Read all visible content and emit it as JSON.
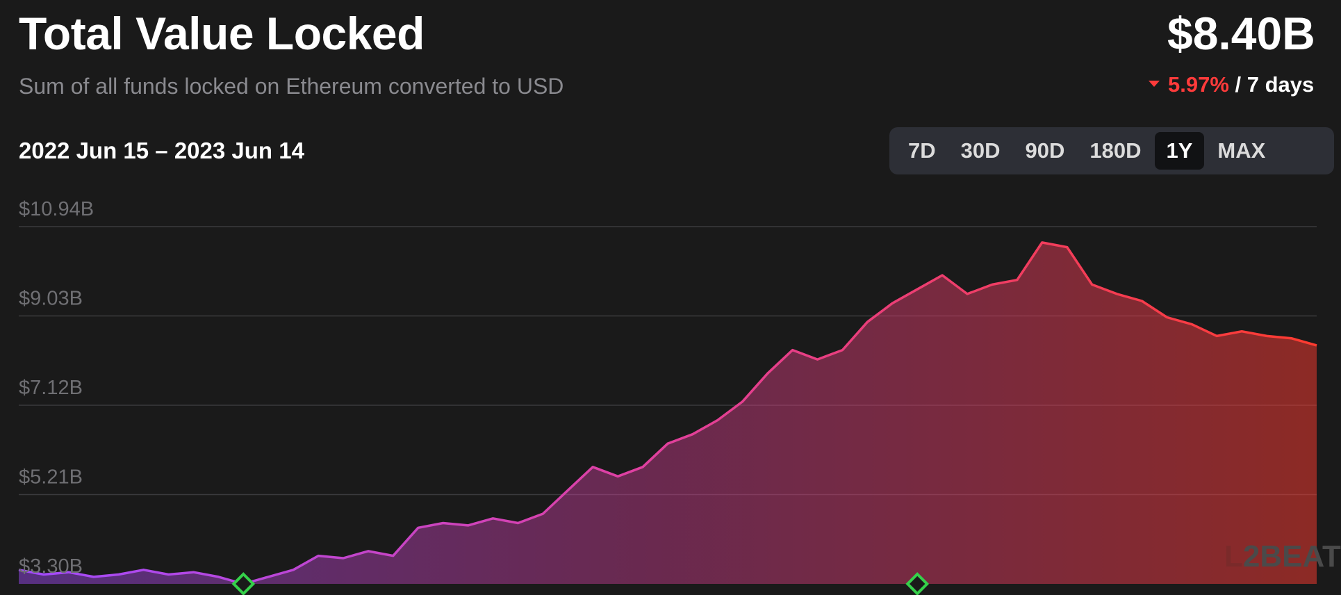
{
  "header": {
    "title": "Total Value Locked",
    "subtitle": "Sum of all funds locked on Ethereum converted to USD",
    "value": "$8.40B",
    "change_pct": "5.97%",
    "change_period": "/ 7 days"
  },
  "date_range": "2022 Jun 15 – 2023 Jun 14",
  "tabs": [
    {
      "label": "7D",
      "active": false
    },
    {
      "label": "30D",
      "active": false
    },
    {
      "label": "90D",
      "active": false
    },
    {
      "label": "180D",
      "active": false
    },
    {
      "label": "1Y",
      "active": true
    },
    {
      "label": "MAX",
      "active": false
    }
  ],
  "watermark": "L2BEAT",
  "colors": {
    "line_start": "#a24bff",
    "line_mid": "#e040a0",
    "line_end": "#ff3b2f",
    "milestone": "#35d14a",
    "negative": "#ff3b3b"
  },
  "chart_data": {
    "type": "area",
    "title": "Total Value Locked",
    "xlabel": "",
    "ylabel": "",
    "x_range": [
      "2022-06-15",
      "2023-06-14"
    ],
    "ylim": [
      3.3,
      10.94
    ],
    "y_ticks": [
      "$10.94B",
      "$9.03B",
      "$7.12B",
      "$5.21B",
      "$3.30B"
    ],
    "y_tick_values": [
      10.94,
      9.03,
      7.12,
      5.21,
      3.3
    ],
    "grid": true,
    "series": [
      {
        "values": [
          3.6,
          3.5,
          3.55,
          3.45,
          3.5,
          3.6,
          3.5,
          3.55,
          3.45,
          3.3,
          3.45,
          3.6,
          3.9,
          3.85,
          4.0,
          3.9,
          4.5,
          4.6,
          4.55,
          4.7,
          4.6,
          4.8,
          5.3,
          5.8,
          5.6,
          5.8,
          6.3,
          6.5,
          6.8,
          7.2,
          7.8,
          8.3,
          8.1,
          8.3,
          8.9,
          9.3,
          9.6,
          9.9,
          9.5,
          9.7,
          9.8,
          10.6,
          10.5,
          9.7,
          9.5,
          9.35,
          9.0,
          8.85,
          8.6,
          8.7,
          8.6,
          8.55,
          8.4
        ]
      }
    ],
    "milestones": [
      {
        "label": "",
        "x_index": 9
      },
      {
        "label": "",
        "x_index": 36
      }
    ]
  }
}
